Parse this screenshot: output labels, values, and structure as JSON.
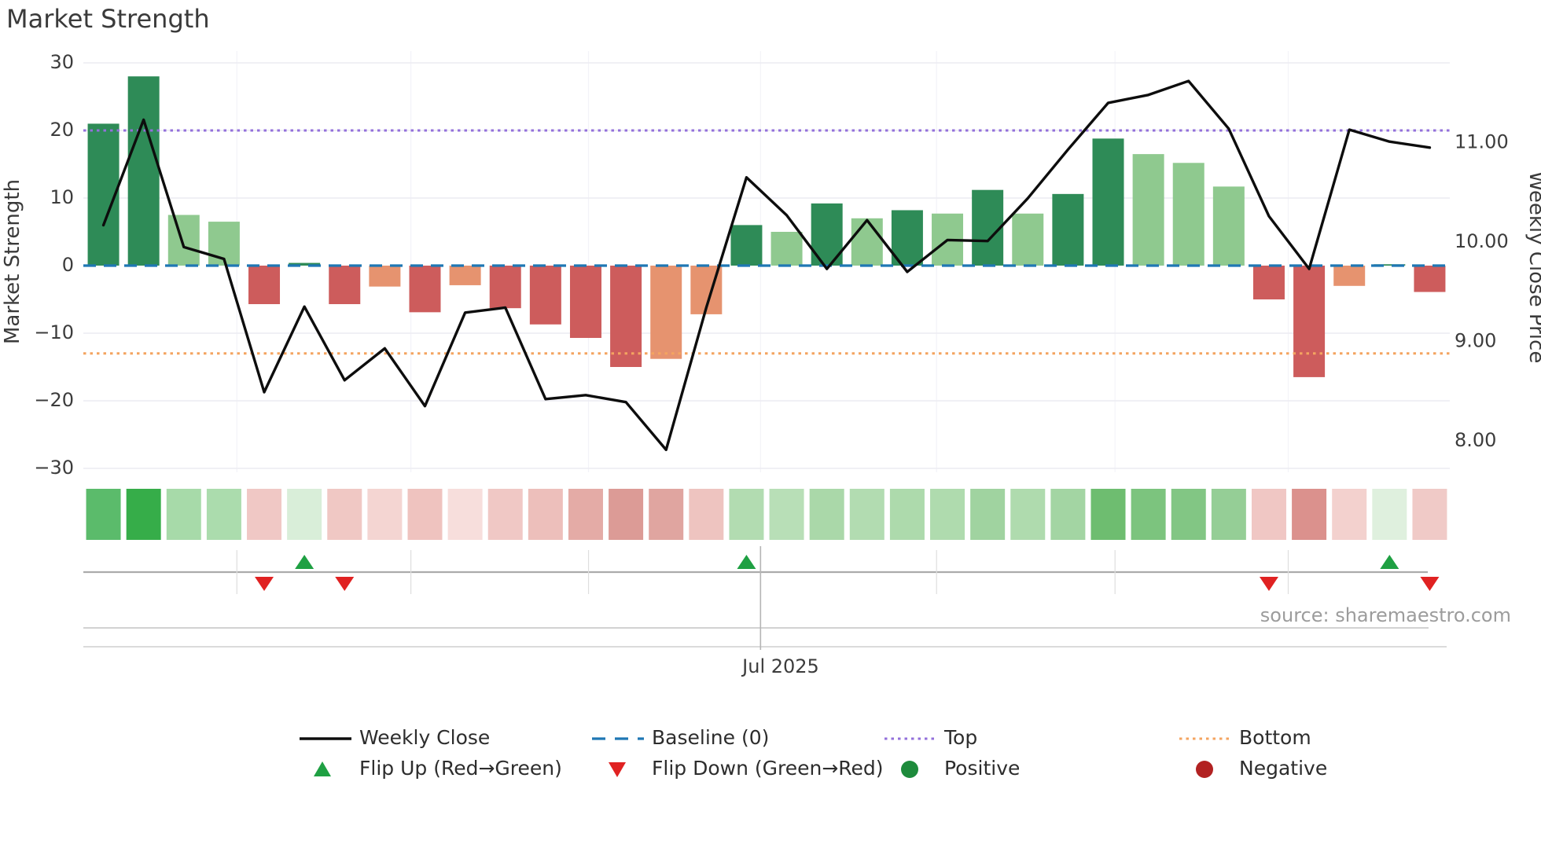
{
  "title": "Market Strength",
  "source": "source: sharemaestro.com",
  "left_axis": {
    "label": "Market Strength",
    "tick_labels": [
      "30",
      "20",
      "10",
      "0",
      "−10",
      "−20",
      "−30"
    ],
    "tick_values": [
      30,
      20,
      10,
      0,
      -10,
      -20,
      -30
    ]
  },
  "right_axis": {
    "label": "Weekly Close Price",
    "tick_labels": [
      "11.00",
      "10.00",
      "9.00",
      "8.00"
    ],
    "tick_values": [
      11,
      10,
      9,
      8
    ]
  },
  "x_axis": {
    "tick_label": "Jul 2025",
    "tick_index": 16.85,
    "minor_tick_indices": [
      3.82,
      8.15,
      12.57,
      21.23,
      25.67,
      29.98
    ]
  },
  "legend": {
    "row1": [
      {
        "label": "Weekly Close",
        "swatch": "black-line"
      },
      {
        "label": "Baseline (0)",
        "swatch": "blue-dashed"
      },
      {
        "label": "Top",
        "swatch": "purple-dotted"
      },
      {
        "label": "Bottom",
        "swatch": "orange-dotted"
      }
    ],
    "row2": [
      {
        "label": "Flip Up (Red→Green)",
        "swatch": "green-up-triangle"
      },
      {
        "label": "Flip Down (Green→Red)",
        "swatch": "red-down-triangle"
      },
      {
        "label": "Positive",
        "swatch": "green-dot"
      },
      {
        "label": "Negative",
        "swatch": "red-dot"
      }
    ]
  },
  "colors": {
    "bar_dark_green": "#2E8B57",
    "bar_light_green": "#8FC98F",
    "bar_red": "#CD5C5C",
    "bar_salmon": "#E6936F",
    "baseline_blue": "#1F77B4",
    "top_purple": "#9370DB",
    "bottom_orange": "#F4A460",
    "price_line": "#0d0d0d",
    "flip_up_green": "#1FA043",
    "flip_down_red": "#E02222",
    "positive_dot": "#1E8B3C",
    "negative_dot": "#B22222",
    "grid": "#ECEBF2",
    "grid_minor_v": "#F3F3F8",
    "tick_text": "#3c3c3c",
    "source_text": "#9C9C9C",
    "legend_text": "#2d2d2d"
  },
  "chart_data": {
    "type": "combo",
    "title": "Market Strength",
    "x_weeks": 34,
    "left_ylabel": "Market Strength",
    "right_ylabel": "Weekly Close Price",
    "left_ylim": [
      -31.5,
      31.5
    ],
    "right_ylim": [
      7.65,
      11.9
    ],
    "grid": true,
    "legend_position": "bottom",
    "series": [
      {
        "name": "Market Strength",
        "type": "bar",
        "axis": "left",
        "values": [
          21,
          28,
          7.5,
          6.5,
          -5.7,
          0.4,
          -5.7,
          -3.1,
          -6.9,
          -2.9,
          -6.3,
          -8.7,
          -10.7,
          -15,
          -13.8,
          -7.2,
          6,
          5,
          9.2,
          7,
          8.2,
          7.7,
          11.2,
          7.7,
          10.6,
          18.8,
          16.5,
          15.2,
          11.7,
          -5,
          -16.5,
          -3,
          0.2,
          -3.9
        ],
        "bar_styles": [
          "dark",
          "dark",
          "light",
          "light",
          "red",
          "dark",
          "red",
          "salmon",
          "red",
          "salmon",
          "red",
          "red",
          "red",
          "red",
          "salmon",
          "salmon",
          "dark",
          "light",
          "dark",
          "light",
          "dark",
          "light",
          "dark",
          "light",
          "dark",
          "dark",
          "light",
          "light",
          "light",
          "red",
          "red",
          "salmon",
          "dark",
          "red"
        ]
      },
      {
        "name": "Weekly Close",
        "type": "line",
        "axis": "right",
        "values": [
          10.17,
          11.23,
          9.95,
          9.83,
          8.49,
          9.35,
          8.61,
          8.93,
          8.35,
          9.29,
          9.34,
          8.42,
          8.46,
          8.39,
          7.91,
          9.34,
          10.65,
          10.27,
          9.73,
          10.22,
          9.7,
          10.02,
          10.01,
          10.44,
          10.93,
          11.4,
          11.48,
          11.62,
          11.14,
          10.26,
          9.73,
          11.13,
          11.01,
          10.95
        ]
      }
    ],
    "reference_lines": [
      {
        "name": "Baseline (0)",
        "axis": "left",
        "value": 0,
        "style": "blue-dashed"
      },
      {
        "name": "Top",
        "axis": "left",
        "value": 20,
        "style": "purple-dotted"
      },
      {
        "name": "Bottom",
        "axis": "left",
        "value": -13,
        "style": "orange-dotted"
      }
    ],
    "flip_up_indices": [
      5,
      16,
      32
    ],
    "flip_down_indices": [
      4,
      6,
      29,
      33
    ],
    "heatmap_colors": [
      "#5BBB6B",
      "#36AD49",
      "#A7DAA9",
      "#ABDCAD",
      "#F0C8C5",
      "#D9EED9",
      "#F0C8C4",
      "#F4D5D2",
      "#EFC3BF",
      "#F7DEDC",
      "#F0C8C5",
      "#EDBFBB",
      "#E4ABA6",
      "#DC9B96",
      "#E0A5A0",
      "#EEC4C0",
      "#B2DCB1",
      "#B8DFB7",
      "#AAD8A9",
      "#B2DCB1",
      "#ADDAAC",
      "#AFDBAE",
      "#A0D3A0",
      "#AFDBAE",
      "#A3D5A3",
      "#6EBD70",
      "#7CC47E",
      "#82C684",
      "#95CE96",
      "#F0C7C4",
      "#DB918D",
      "#F3D1CE",
      "#DFF0DE",
      "#F0CAC7"
    ]
  }
}
